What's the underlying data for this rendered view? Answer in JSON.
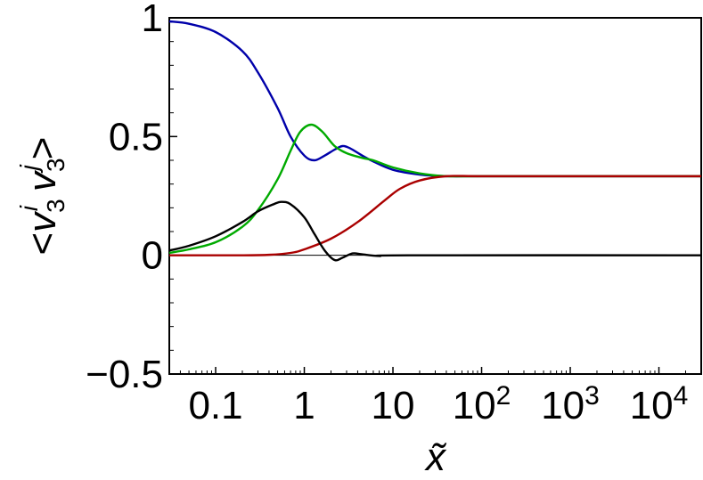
{
  "chart_data": {
    "type": "line",
    "title": "",
    "xlabel": "x̃",
    "ylabel": "<v3^i v3^j>",
    "ylabel_parts": {
      "open": "<",
      "v1": "v",
      "sub1": "3",
      "sup1": "i",
      "v2": "v",
      "sub2": "3",
      "sup2": "j",
      "close": ">"
    },
    "x_scale": "log",
    "xlim": [
      0.03,
      30000
    ],
    "ylim": [
      -0.5,
      1.0
    ],
    "x_ticks": [
      {
        "value": 0.1,
        "base": "0.1",
        "exp": ""
      },
      {
        "value": 1,
        "base": "1",
        "exp": ""
      },
      {
        "value": 10,
        "base": "10",
        "exp": ""
      },
      {
        "value": 100,
        "base": "10",
        "exp": "2"
      },
      {
        "value": 1000,
        "base": "10",
        "exp": "3"
      },
      {
        "value": 10000,
        "base": "10",
        "exp": "4"
      }
    ],
    "y_ticks": [
      {
        "value": 1.0,
        "label": "1"
      },
      {
        "value": 0.5,
        "label": "0.5"
      },
      {
        "value": 0.0,
        "label": "0"
      },
      {
        "value": -0.5,
        "label": "−0.5"
      }
    ],
    "reference_line": {
      "y": 0
    },
    "grid": false,
    "legend": "none",
    "series": [
      {
        "color": "#0000aa",
        "points": [
          [
            0.03,
            0.985
          ],
          [
            0.05,
            0.975
          ],
          [
            0.1,
            0.94
          ],
          [
            0.2,
            0.86
          ],
          [
            0.3,
            0.77
          ],
          [
            0.5,
            0.62
          ],
          [
            0.7,
            0.5
          ],
          [
            1.0,
            0.42
          ],
          [
            1.3,
            0.4
          ],
          [
            1.7,
            0.42
          ],
          [
            2.2,
            0.445
          ],
          [
            2.7,
            0.46
          ],
          [
            3.3,
            0.45
          ],
          [
            4.5,
            0.42
          ],
          [
            6,
            0.395
          ],
          [
            10,
            0.36
          ],
          [
            20,
            0.34
          ],
          [
            40,
            0.333
          ],
          [
            100,
            0.333
          ],
          [
            1000,
            0.333
          ],
          [
            30000,
            0.333
          ]
        ]
      },
      {
        "color": "#00aa00",
        "points": [
          [
            0.03,
            0.01
          ],
          [
            0.05,
            0.025
          ],
          [
            0.1,
            0.055
          ],
          [
            0.2,
            0.12
          ],
          [
            0.3,
            0.19
          ],
          [
            0.5,
            0.32
          ],
          [
            0.7,
            0.44
          ],
          [
            0.9,
            0.52
          ],
          [
            1.2,
            0.55
          ],
          [
            1.6,
            0.52
          ],
          [
            2.2,
            0.46
          ],
          [
            3,
            0.43
          ],
          [
            4.5,
            0.41
          ],
          [
            6,
            0.4
          ],
          [
            10,
            0.37
          ],
          [
            20,
            0.345
          ],
          [
            40,
            0.333
          ],
          [
            100,
            0.333
          ],
          [
            1000,
            0.333
          ],
          [
            30000,
            0.333
          ]
        ]
      },
      {
        "color": "#aa0000",
        "points": [
          [
            0.03,
            0.0
          ],
          [
            0.2,
            0.0
          ],
          [
            0.4,
            0.002
          ],
          [
            0.7,
            0.01
          ],
          [
            1.0,
            0.025
          ],
          [
            2,
            0.07
          ],
          [
            4,
            0.14
          ],
          [
            8,
            0.23
          ],
          [
            12,
            0.28
          ],
          [
            20,
            0.315
          ],
          [
            40,
            0.333
          ],
          [
            100,
            0.333
          ],
          [
            1000,
            0.333
          ],
          [
            30000,
            0.333
          ]
        ]
      },
      {
        "color": "#000000",
        "points": [
          [
            0.03,
            0.02
          ],
          [
            0.05,
            0.04
          ],
          [
            0.1,
            0.08
          ],
          [
            0.2,
            0.14
          ],
          [
            0.3,
            0.185
          ],
          [
            0.45,
            0.215
          ],
          [
            0.55,
            0.225
          ],
          [
            0.7,
            0.215
          ],
          [
            1.0,
            0.16
          ],
          [
            1.3,
            0.09
          ],
          [
            1.7,
            0.02
          ],
          [
            2.2,
            -0.02
          ],
          [
            2.7,
            -0.01
          ],
          [
            3.5,
            0.008
          ],
          [
            4.5,
            0.004
          ],
          [
            7,
            -0.003
          ],
          [
            15,
            0.0
          ],
          [
            30000,
            0.0
          ]
        ]
      }
    ]
  }
}
